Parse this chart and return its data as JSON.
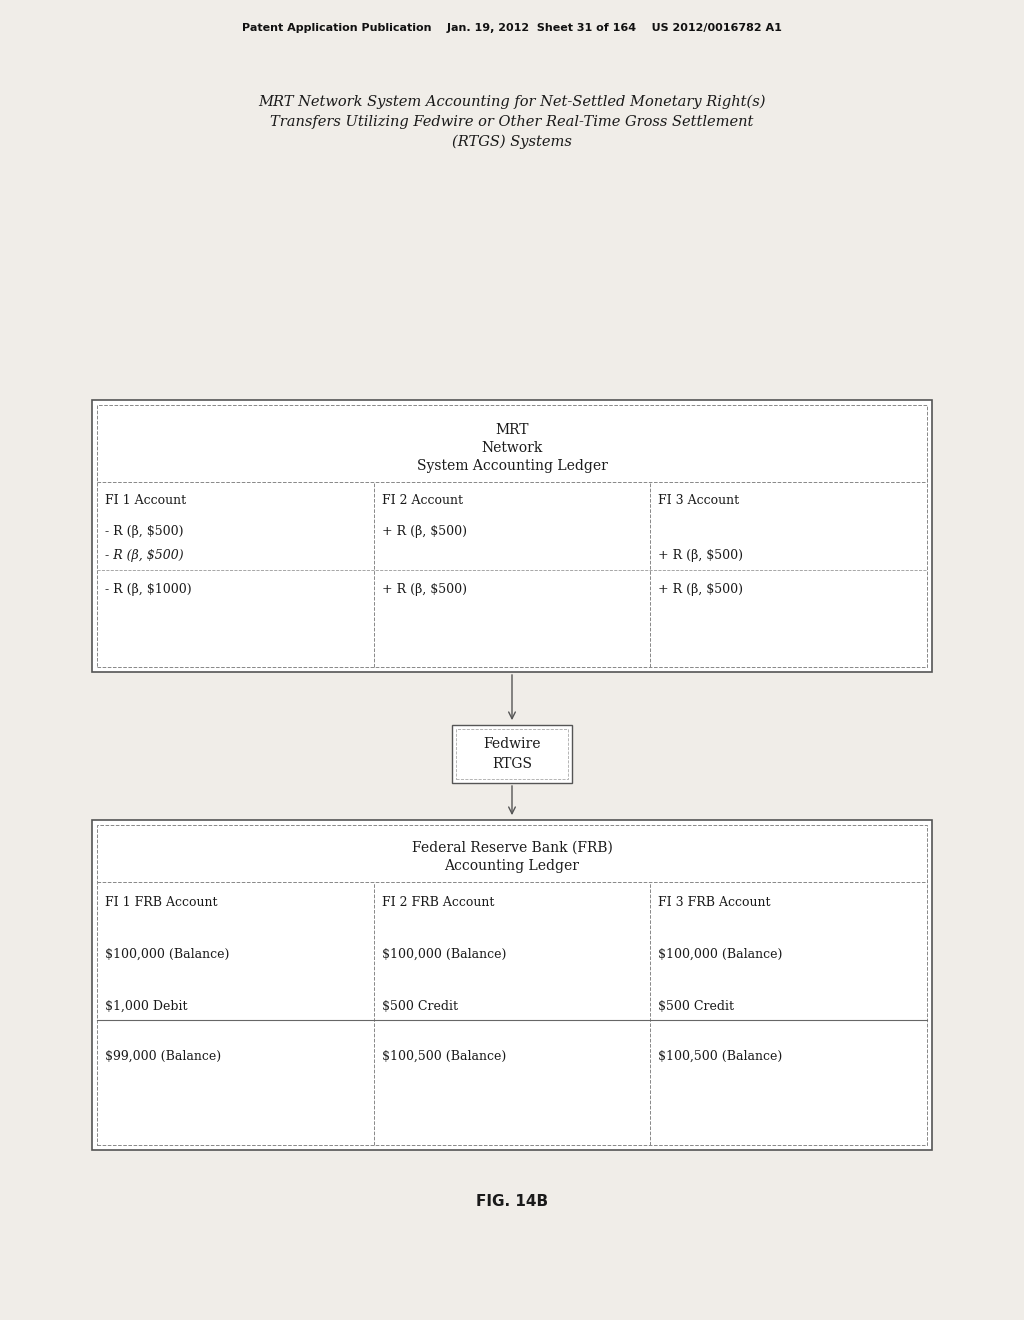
{
  "bg_color": "#ffffff",
  "page_bg": "#f0ede8",
  "header_text": "Patent Application Publication    Jan. 19, 2012  Sheet 31 of 164    US 2012/0016782 A1",
  "title_line1": "MRT Network System Accounting for Net-Settled Monetary Right(s)",
  "title_line2": "Transfers Utilizing Fedwire or Other Real-Time Gross Settlement",
  "title_line3": "(RTGS) Systems",
  "fig_label": "FIG. 14B",
  "mrt_box": {
    "title_line1": "MRT",
    "title_line2": "Network",
    "title_line3": "System Accounting Ledger",
    "col1_header": "FI 1 Account",
    "col2_header": "FI 2 Account",
    "col3_header": "FI 3 Account",
    "col1_row1": "- R (β, $500)",
    "col1_row2": "- R (β, $500)",
    "col1_row3": "- R (β, $1000)",
    "col2_row1": "+ R (β, $500)",
    "col2_row2": "",
    "col2_row3": "+ R (β, $500)",
    "col3_row1": "",
    "col3_row2": "+ R (β, $500)",
    "col3_row3": "+ R (β, $500)"
  },
  "fedwire_box": {
    "line1": "Fedwire",
    "line2": "RTGS"
  },
  "frb_box": {
    "title_line1": "Federal Reserve Bank (FRB)",
    "title_line2": "Accounting Ledger",
    "col1_header": "FI 1 FRB Account",
    "col2_header": "FI 2 FRB Account",
    "col3_header": "FI 3 FRB Account",
    "col1_row1": "$100,000 (Balance)",
    "col2_row1": "$100,000 (Balance)",
    "col3_row1": "$100,000 (Balance)",
    "col1_row2": "$1,000 Debit",
    "col2_row2": "$500 Credit",
    "col3_row2": "$500 Credit",
    "col1_row3": "$99,000 (Balance)",
    "col2_row3": "$100,500 (Balance)",
    "col3_row3": "$100,500 (Balance)"
  }
}
